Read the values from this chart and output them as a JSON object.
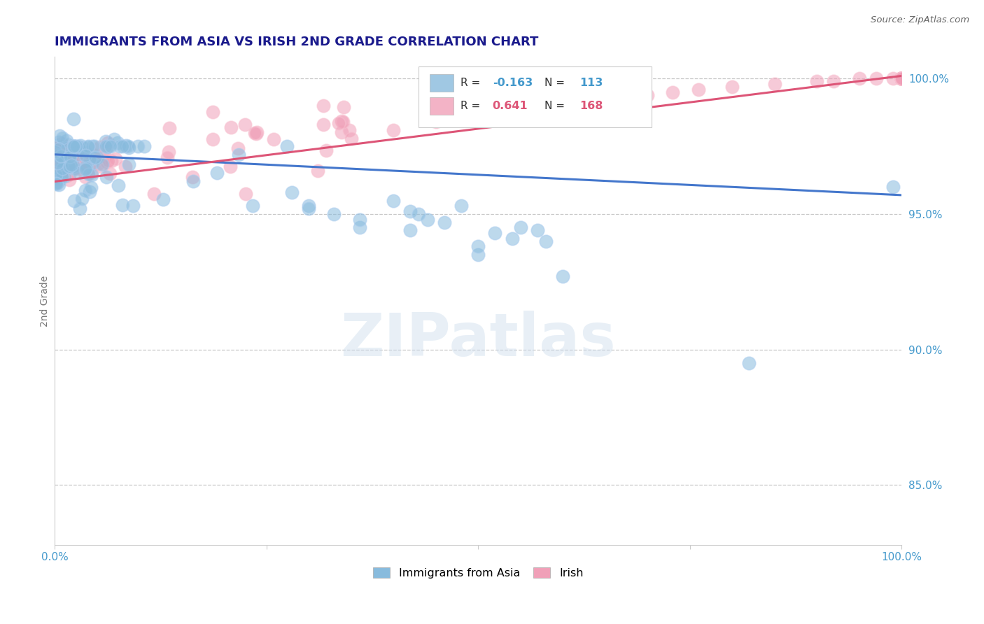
{
  "title": "IMMIGRANTS FROM ASIA VS IRISH 2ND GRADE CORRELATION CHART",
  "source": "Source: ZipAtlas.com",
  "ylabel": "2nd Grade",
  "xlim": [
    0.0,
    1.0
  ],
  "ylim": [
    0.828,
    1.008
  ],
  "ytick_labels": [
    "85.0%",
    "90.0%",
    "95.0%",
    "100.0%"
  ],
  "ytick_values": [
    0.85,
    0.9,
    0.95,
    1.0
  ],
  "gridline_y": [
    0.85,
    0.9,
    0.95,
    1.0
  ],
  "blue_series_label": "Immigrants from Asia",
  "pink_series_label": "Irish",
  "blue_color": "#88bbdd",
  "pink_color": "#f0a0b8",
  "blue_edge_color": "#aaccee",
  "pink_edge_color": "#f8c0d0",
  "blue_line_color": "#4477cc",
  "pink_line_color": "#dd5577",
  "legend_R_blue_text": "-0.163",
  "legend_R_pink_text": "0.641",
  "legend_N_blue_text": "113",
  "legend_N_pink_text": "168",
  "blue_trend_x": [
    0.0,
    1.0
  ],
  "blue_trend_y": [
    0.972,
    0.957
  ],
  "pink_trend_x": [
    0.0,
    1.0
  ],
  "pink_trend_y": [
    0.962,
    1.001
  ],
  "background_color": "#ffffff",
  "title_color": "#1a1a8c",
  "axis_label_color": "#777777",
  "tick_label_color": "#4499cc",
  "watermark_text": "ZIPatlas",
  "watermark_color": "#ccdded",
  "watermark_alpha": 0.45
}
